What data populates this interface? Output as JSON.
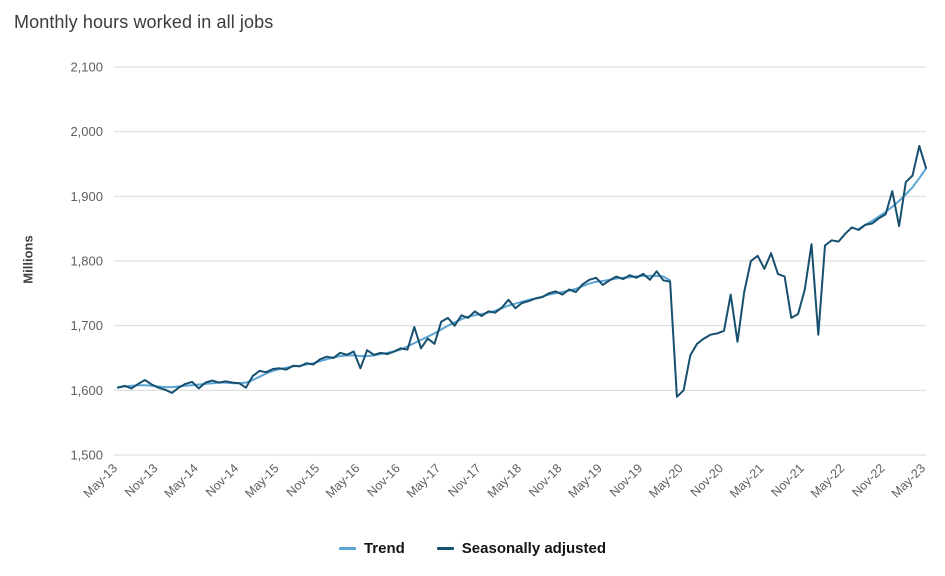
{
  "title": "Monthly hours worked in all jobs",
  "legend": [
    {
      "label": "Trend",
      "color": "#5ba4d4"
    },
    {
      "label": "Seasonally adjusted",
      "color": "#17506f"
    }
  ],
  "colors": {
    "gridline": "#d9d9d9",
    "axis_text": "#5f5f5f",
    "title_text": "#3c3c3e"
  },
  "chart_data": {
    "type": "line",
    "title": "Monthly hours worked in all jobs",
    "xlabel": "",
    "ylabel": "Millions",
    "ylim": [
      1500,
      2100
    ],
    "y_tick_step": 100,
    "y_tick_labels": [
      "1,500",
      "1,600",
      "1,700",
      "1,800",
      "1,900",
      "2,000",
      "2,100"
    ],
    "grid": "horizontal",
    "legend_position": "bottom",
    "x_tick_every": 6,
    "x_tick_labels": [
      "May-13",
      "Nov-13",
      "May-14",
      "Nov-14",
      "May-15",
      "Nov-15",
      "May-16",
      "Nov-16",
      "May-17",
      "Nov-17",
      "May-18",
      "Nov-18",
      "May-19",
      "Nov-19",
      "May-20",
      "Nov-20",
      "May-21",
      "Nov-21",
      "May-22",
      "Nov-22",
      "May-23"
    ],
    "series": [
      {
        "name": "Trend",
        "color": "#5ba4d4",
        "values": [
          1605,
          1606,
          1607,
          1608,
          1608,
          1607,
          1606,
          1605,
          1605,
          1606,
          1607,
          1608,
          1609,
          1610,
          1611,
          1612,
          1612,
          1611,
          1611,
          1612,
          1616,
          1621,
          1626,
          1630,
          1633,
          1635,
          1637,
          1638,
          1640,
          1642,
          1645,
          1648,
          1651,
          1653,
          1654,
          1654,
          1653,
          1653,
          1654,
          1656,
          1658,
          1660,
          1663,
          1668,
          1673,
          1678,
          1683,
          1688,
          1694,
          1700,
          1705,
          1710,
          1714,
          1716,
          1718,
          1720,
          1723,
          1727,
          1731,
          1734,
          1737,
          1740,
          1742,
          1745,
          1748,
          1750,
          1752,
          1754,
          1757,
          1761,
          1765,
          1768,
          1769,
          1771,
          1773,
          1774,
          1775,
          1776,
          1777,
          1777,
          1777,
          1776,
          1770,
          null,
          null,
          null,
          null,
          null,
          null,
          null,
          null,
          null,
          null,
          null,
          null,
          null,
          null,
          null,
          null,
          null,
          null,
          null,
          null,
          null,
          null,
          null,
          null,
          null,
          null,
          null,
          1850,
          1856,
          1862,
          1869,
          1876,
          1884,
          1893,
          1903,
          1914,
          1928,
          1943
        ]
      },
      {
        "name": "Seasonally adjusted",
        "color": "#17506f",
        "values": [
          1604,
          1607,
          1603,
          1610,
          1616,
          1609,
          1604,
          1601,
          1596,
          1604,
          1610,
          1613,
          1603,
          1612,
          1615,
          1612,
          1614,
          1612,
          1611,
          1604,
          1622,
          1630,
          1628,
          1633,
          1634,
          1632,
          1638,
          1637,
          1642,
          1640,
          1648,
          1652,
          1650,
          1658,
          1655,
          1660,
          1634,
          1662,
          1655,
          1658,
          1656,
          1660,
          1665,
          1663,
          1698,
          1665,
          1680,
          1672,
          1706,
          1712,
          1700,
          1716,
          1712,
          1722,
          1715,
          1722,
          1720,
          1728,
          1740,
          1727,
          1735,
          1738,
          1742,
          1744,
          1750,
          1753,
          1748,
          1756,
          1752,
          1764,
          1771,
          1774,
          1763,
          1770,
          1776,
          1772,
          1778,
          1774,
          1780,
          1771,
          1784,
          1770,
          1768,
          1590,
          1600,
          1654,
          1672,
          1680,
          1686,
          1688,
          1692,
          1748,
          1675,
          1752,
          1800,
          1808,
          1788,
          1812,
          1780,
          1776,
          1712,
          1718,
          1756,
          1826,
          1686,
          1824,
          1832,
          1830,
          1842,
          1852,
          1848,
          1856,
          1858,
          1866,
          1872,
          1908,
          1854,
          1922,
          1932,
          1978,
          1944
        ]
      }
    ]
  }
}
